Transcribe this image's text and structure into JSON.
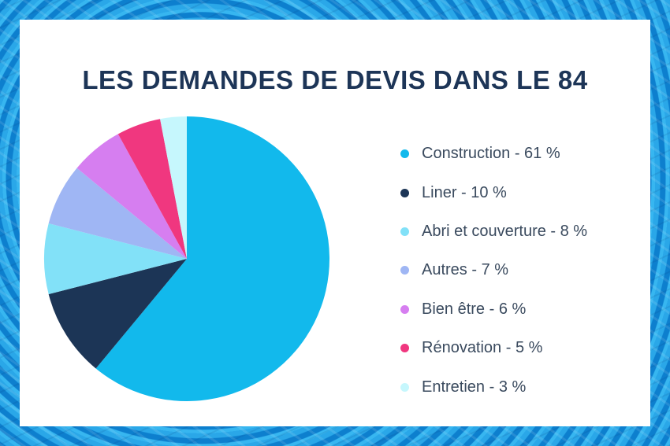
{
  "chart_data": {
    "type": "pie",
    "title": "LES DEMANDES DE DEVIS DANS LE 84",
    "slices": [
      {
        "label": "Construction - 61 %",
        "value": 61,
        "color": "#12b9ec"
      },
      {
        "label": "Liner - 10 %",
        "value": 10,
        "color": "#1c3556"
      },
      {
        "label": "Abri et couverture - 8 %",
        "value": 8,
        "color": "#82e1f8"
      },
      {
        "label": "Autres - 7 %",
        "value": 7,
        "color": "#9fb6f4"
      },
      {
        "label": "Bien être - 6 %",
        "value": 6,
        "color": "#d67ef0"
      },
      {
        "label": "Rénovation - 5 %",
        "value": 5,
        "color": "#f0377f"
      },
      {
        "label": "Entretien - 3 %",
        "value": 3,
        "color": "#c6f7fd"
      }
    ],
    "legend_position": "right"
  }
}
